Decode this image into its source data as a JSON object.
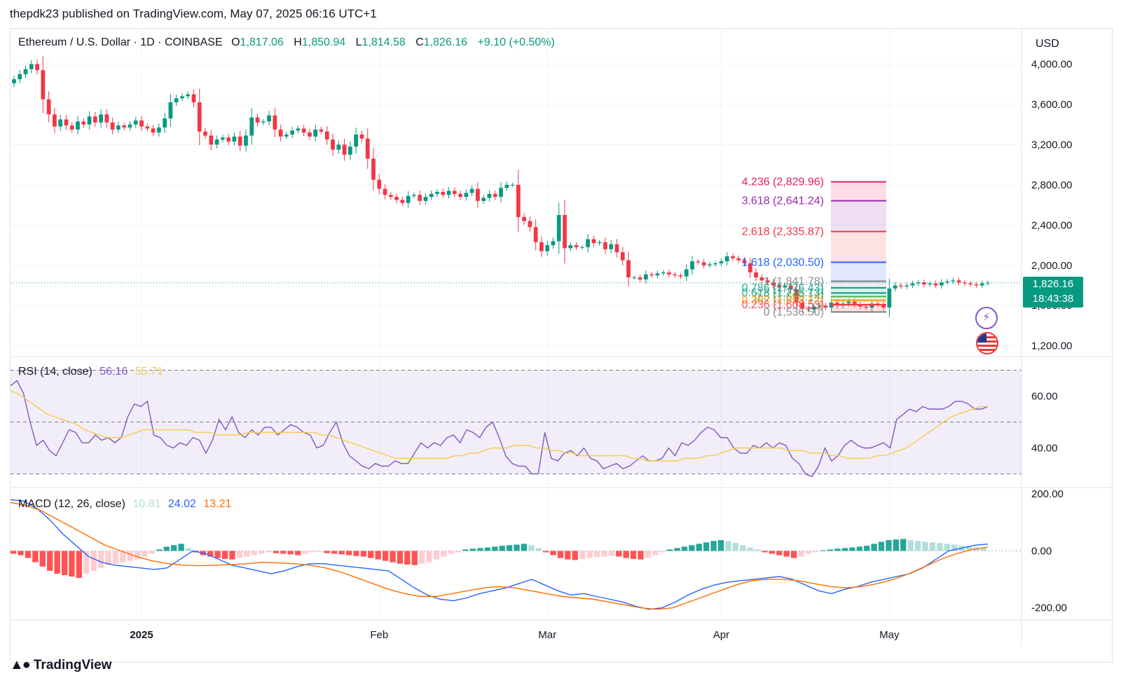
{
  "header": {
    "publish_line": "thepdk23 published on TradingView.com, May 07, 2025 06:16 UTC+1"
  },
  "legend": {
    "symbol": "Ethereum / U.S. Dollar · 1D · COINBASE",
    "open_label": "O",
    "open": "1,817.06",
    "high_label": "H",
    "high": "1,850.94",
    "low_label": "L",
    "low": "1,814.58",
    "close_label": "C",
    "close": "1,826.16",
    "change": "+9.10 (+0.50%)"
  },
  "currency": "USD",
  "last_price": {
    "value": "1,826.16",
    "countdown": "18:43:38"
  },
  "rsi_legend": {
    "title": "RSI (14, close)",
    "rsi": "56.16",
    "ma": "55.71"
  },
  "macd_legend": {
    "title": "MACD (12, 26, close)",
    "hist": "10.81",
    "macd": "24.02",
    "signal": "13.21"
  },
  "footer": {
    "brand": "TradingView"
  },
  "icons": [
    "ai-sparkle-icon",
    "us-flag-icon",
    "tradingview-logo-icon"
  ],
  "colors": {
    "up": "#089981",
    "down": "#f23645",
    "rsi": "#7e57c2",
    "rsi_ma": "#f7c948",
    "macd": "#2962ff",
    "signal": "#ff6d00"
  },
  "chart_data": [
    {
      "type": "candlestick",
      "title": "",
      "price_axis": {
        "ticks": [
          "4,000.00",
          "3,600.00",
          "3,200.00",
          "2,800.00",
          "2,400.00",
          "2,000.00",
          "1,600.00",
          "1,200.00"
        ],
        "range": [
          1100,
          4150
        ]
      },
      "time_axis": {
        "labels": [
          "2025",
          "Feb",
          "Mar",
          "Apr",
          "May"
        ]
      },
      "close_series": [
        3850,
        3900,
        3950,
        4000,
        3940,
        3650,
        3500,
        3380,
        3450,
        3390,
        3350,
        3430,
        3400,
        3480,
        3420,
        3500,
        3420,
        3350,
        3390,
        3370,
        3400,
        3440,
        3380,
        3360,
        3320,
        3370,
        3460,
        3620,
        3660,
        3680,
        3700,
        3620,
        3330,
        3290,
        3200,
        3250,
        3270,
        3230,
        3280,
        3190,
        3290,
        3470,
        3420,
        3430,
        3490,
        3350,
        3280,
        3300,
        3340,
        3360,
        3320,
        3280,
        3350,
        3330,
        3250,
        3150,
        3200,
        3100,
        3180,
        3300,
        3260,
        3060,
        2850,
        2760,
        2700,
        2680,
        2650,
        2620,
        2690,
        2700,
        2640,
        2680,
        2710,
        2730,
        2700,
        2740,
        2710,
        2680,
        2720,
        2760,
        2640,
        2670,
        2710,
        2680,
        2770,
        2800,
        2800,
        2480,
        2440,
        2380,
        2230,
        2140,
        2200,
        2240,
        2500,
        2170,
        2200,
        2180,
        2180,
        2260,
        2220,
        2230,
        2160,
        2210,
        2130,
        2050,
        1880,
        1880,
        1860,
        1910,
        1900,
        1920,
        1930,
        1910,
        1900,
        1890,
        1960,
        2040,
        2030,
        2000,
        2010,
        2020,
        2040,
        2090,
        2070,
        2050,
        2020,
        1930,
        1880,
        1850,
        1830,
        1800,
        1780,
        1800,
        1760,
        1630,
        1570,
        1560,
        1590,
        1600,
        1580,
        1630,
        1600,
        1620,
        1640,
        1610,
        1590,
        1580,
        1620,
        1610,
        1580,
        1770,
        1800,
        1790,
        1800,
        1820,
        1830,
        1810,
        1820,
        1800,
        1830,
        1840,
        1850,
        1830,
        1820,
        1810,
        1800,
        1820,
        1826
      ],
      "fibonacci_levels": [
        {
          "label": "4.236 (2,829.96)",
          "value": 2829.96,
          "color": "#e91e63"
        },
        {
          "label": "3.618 (2,641.24)",
          "value": 2641.24,
          "color": "#9c27b0"
        },
        {
          "label": "2.618 (2,335.87)",
          "value": 2335.87,
          "color": "#f23645"
        },
        {
          "label": "1.618 (2,030.50)",
          "value": 2030.5,
          "color": "#2962ff"
        },
        {
          "label": "1 (1,841.78)",
          "value": 1841.78,
          "color": "#787b86"
        },
        {
          "label": "0.786 (1,776.43)",
          "value": 1776.43,
          "color": "#089981"
        },
        {
          "label": "0.618 (1,725.13)",
          "value": 1725.13,
          "color": "#089981"
        },
        {
          "label": "0.5 (1,689.14)",
          "value": 1689.14,
          "color": "#4caf50"
        },
        {
          "label": "0.382 (1,653.12)",
          "value": 1653.12,
          "color": "#ff9800"
        },
        {
          "label": "0.236 (1,608.53)",
          "value": 1608.53,
          "color": "#f23645"
        },
        {
          "label": "0 (1,536.50)",
          "value": 1536.5,
          "color": "#787b86"
        }
      ]
    },
    {
      "type": "line",
      "title": "RSI (14, close)",
      "y_axis": {
        "ticks": [
          "60.00",
          "40.00"
        ],
        "range": [
          25,
          75
        ],
        "bands": [
          30,
          50,
          70
        ]
      },
      "series": [
        {
          "name": "RSI",
          "values": [
            64,
            66,
            61,
            50,
            41,
            43,
            39,
            37,
            42,
            47,
            46,
            42,
            42,
            45,
            43,
            44,
            42,
            44,
            52,
            57,
            56,
            58,
            45,
            44,
            41,
            40,
            42,
            41,
            44,
            43,
            38,
            43,
            51,
            47,
            52,
            46,
            44,
            47,
            45,
            48,
            48,
            45,
            47,
            49,
            48,
            46,
            45,
            40,
            41,
            46,
            50,
            42,
            37,
            35,
            33,
            32,
            34,
            33,
            33,
            35,
            34,
            34,
            38,
            42,
            40,
            42,
            41,
            44,
            45,
            42,
            47,
            46,
            44,
            48,
            50,
            44,
            37,
            34,
            33,
            33,
            30,
            30,
            46,
            36,
            35,
            38,
            39,
            37,
            40,
            36,
            35,
            32,
            33,
            34,
            32,
            33,
            35,
            37,
            35,
            35,
            36,
            40,
            37,
            42,
            41,
            43,
            46,
            48,
            47,
            44,
            44,
            40,
            38,
            38,
            41,
            40,
            42,
            40,
            42,
            41,
            36,
            34,
            30,
            29,
            33,
            40,
            35,
            37,
            41,
            43,
            41,
            40,
            40,
            41,
            42,
            40,
            51,
            53,
            55,
            54,
            56,
            55,
            55,
            55,
            56,
            58,
            58,
            57,
            55,
            55,
            56
          ]
        },
        {
          "name": "RSI MA",
          "values": [
            62,
            61,
            59,
            57,
            55,
            53,
            52,
            51,
            50,
            49,
            47,
            46,
            45,
            44,
            44,
            44,
            45,
            46,
            47,
            47,
            47,
            47,
            47,
            47,
            47,
            46,
            46,
            46,
            45,
            45,
            45,
            45,
            46,
            46,
            46,
            46,
            46,
            46,
            46,
            46,
            46,
            46,
            45,
            45,
            44,
            43,
            42,
            41,
            40,
            39,
            38,
            37,
            36,
            36,
            36,
            36,
            36,
            36,
            36,
            36,
            37,
            37,
            38,
            38,
            39,
            40,
            40,
            40,
            41,
            41,
            41,
            40,
            40,
            39,
            39,
            38,
            38,
            37,
            37,
            37,
            37,
            37,
            37,
            37,
            36,
            36,
            35,
            35,
            35,
            35,
            35,
            36,
            36,
            36,
            37,
            37,
            38,
            39,
            40,
            40,
            40,
            40,
            40,
            40,
            40,
            39,
            39,
            39,
            38,
            38,
            38,
            37,
            37,
            36,
            36,
            36,
            36,
            37,
            37,
            38,
            39,
            40,
            42,
            44,
            46,
            48,
            50,
            52,
            53,
            54,
            55,
            56,
            56
          ]
        }
      ]
    },
    {
      "type": "bar+line",
      "title": "MACD (12, 26, close)",
      "y_axis": {
        "ticks": [
          "200.00",
          "0.00",
          "-200.00"
        ],
        "range": [
          -240,
          220
        ]
      },
      "series": [
        {
          "name": "Histogram",
          "values": [
            -10,
            -15,
            -25,
            -40,
            -55,
            -70,
            -80,
            -85,
            -90,
            -95,
            -80,
            -70,
            -60,
            -50,
            -45,
            -40,
            -35,
            -30,
            -20,
            -10,
            5,
            15,
            20,
            25,
            10,
            -5,
            -15,
            -20,
            -25,
            -28,
            -30,
            -25,
            -20,
            -15,
            -10,
            -5,
            -8,
            -10,
            -12,
            -15,
            -10,
            -5,
            -3,
            -8,
            -10,
            -12,
            -15,
            -18,
            -20,
            -25,
            -30,
            -35,
            -40,
            -45,
            -48,
            -50,
            -45,
            -40,
            -30,
            -20,
            -10,
            -5,
            5,
            8,
            10,
            12,
            15,
            18,
            20,
            22,
            25,
            20,
            10,
            -5,
            -15,
            -25,
            -30,
            -32,
            -28,
            -25,
            -22,
            -20,
            -18,
            -20,
            -25,
            -28,
            -30,
            -25,
            -15,
            -5,
            5,
            10,
            15,
            20,
            25,
            30,
            35,
            38,
            35,
            28,
            20,
            12,
            5,
            -5,
            -10,
            -15,
            -20,
            -25,
            -20,
            -10,
            -5,
            2,
            5,
            8,
            10,
            12,
            15,
            18,
            25,
            32,
            38,
            40,
            42,
            38,
            35,
            32,
            30,
            28,
            25,
            22,
            18,
            15,
            12,
            10
          ]
        },
        {
          "name": "MACD",
          "values": [
            180,
            175,
            150,
            110,
            60,
            20,
            -20,
            -40,
            -50,
            -55,
            -60,
            -65,
            -60,
            -30,
            0,
            -10,
            -30,
            -50,
            -60,
            -70,
            -80,
            -70,
            -55,
            -45,
            -45,
            -50,
            -55,
            -60,
            -65,
            -70,
            -100,
            -130,
            -155,
            -170,
            -175,
            -165,
            -150,
            -140,
            -130,
            -115,
            -100,
            -120,
            -140,
            -155,
            -150,
            -160,
            -170,
            -180,
            -195,
            -205,
            -200,
            -180,
            -155,
            -135,
            -120,
            -110,
            -105,
            -100,
            -95,
            -90,
            -100,
            -120,
            -140,
            -150,
            -135,
            -125,
            -110,
            -100,
            -90,
            -80,
            -60,
            -30,
            0,
            10,
            20,
            24
          ]
        },
        {
          "name": "Signal",
          "values": [
            170,
            160,
            140,
            110,
            80,
            50,
            20,
            0,
            -20,
            -35,
            -45,
            -50,
            -52,
            -50,
            -48,
            -45,
            -40,
            -42,
            -45,
            -50,
            -60,
            -75,
            -95,
            -115,
            -135,
            -150,
            -160,
            -160,
            -150,
            -140,
            -130,
            -125,
            -130,
            -140,
            -150,
            -160,
            -165,
            -170,
            -180,
            -190,
            -200,
            -205,
            -200,
            -180,
            -160,
            -140,
            -120,
            -105,
            -100,
            -100,
            -105,
            -115,
            -125,
            -130,
            -125,
            -115,
            -100,
            -80,
            -55,
            -30,
            -10,
            5,
            13
          ]
        }
      ]
    }
  ]
}
